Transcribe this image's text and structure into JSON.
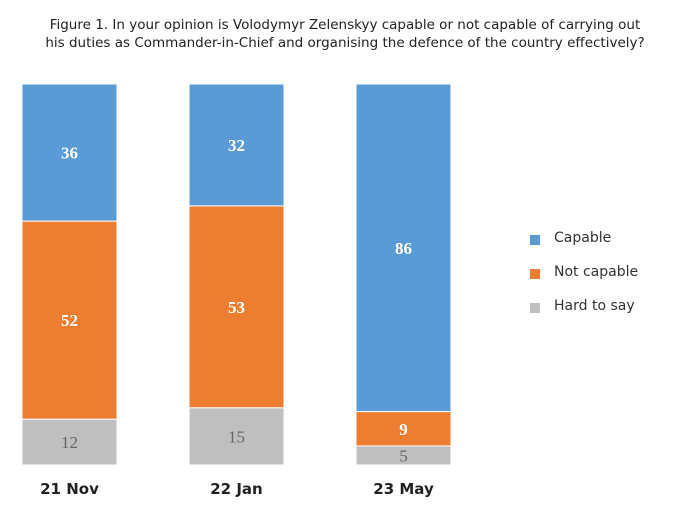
{
  "chart_data": {
    "type": "bar",
    "stacked": true,
    "title": "Figure 1. In your opinion is Volodymyr Zelenskyy capable or not capable of carrying out his duties as Commander-in-Chief and organising the defence of the country effectively?",
    "title_lines": [
      "Figure 1. In your opinion is Volodymyr Zelenskyy capable or not capable of carrying out",
      "his duties as Commander-in-Chief and organising the defence of the country effectively?"
    ],
    "categories": [
      "21 Nov",
      "22 Jan",
      "23 May"
    ],
    "series": [
      {
        "name": "Capable",
        "values": [
          36,
          32,
          86
        ],
        "color": "#5b9bd5"
      },
      {
        "name": "Not capable",
        "values": [
          52,
          53,
          9
        ],
        "color": "#ed7d31"
      },
      {
        "name": "Hard to say",
        "values": [
          12,
          15,
          5
        ],
        "color": "#bfbfbf"
      }
    ],
    "ylim": [
      0,
      100
    ],
    "legend_position": "right",
    "grid": false
  }
}
